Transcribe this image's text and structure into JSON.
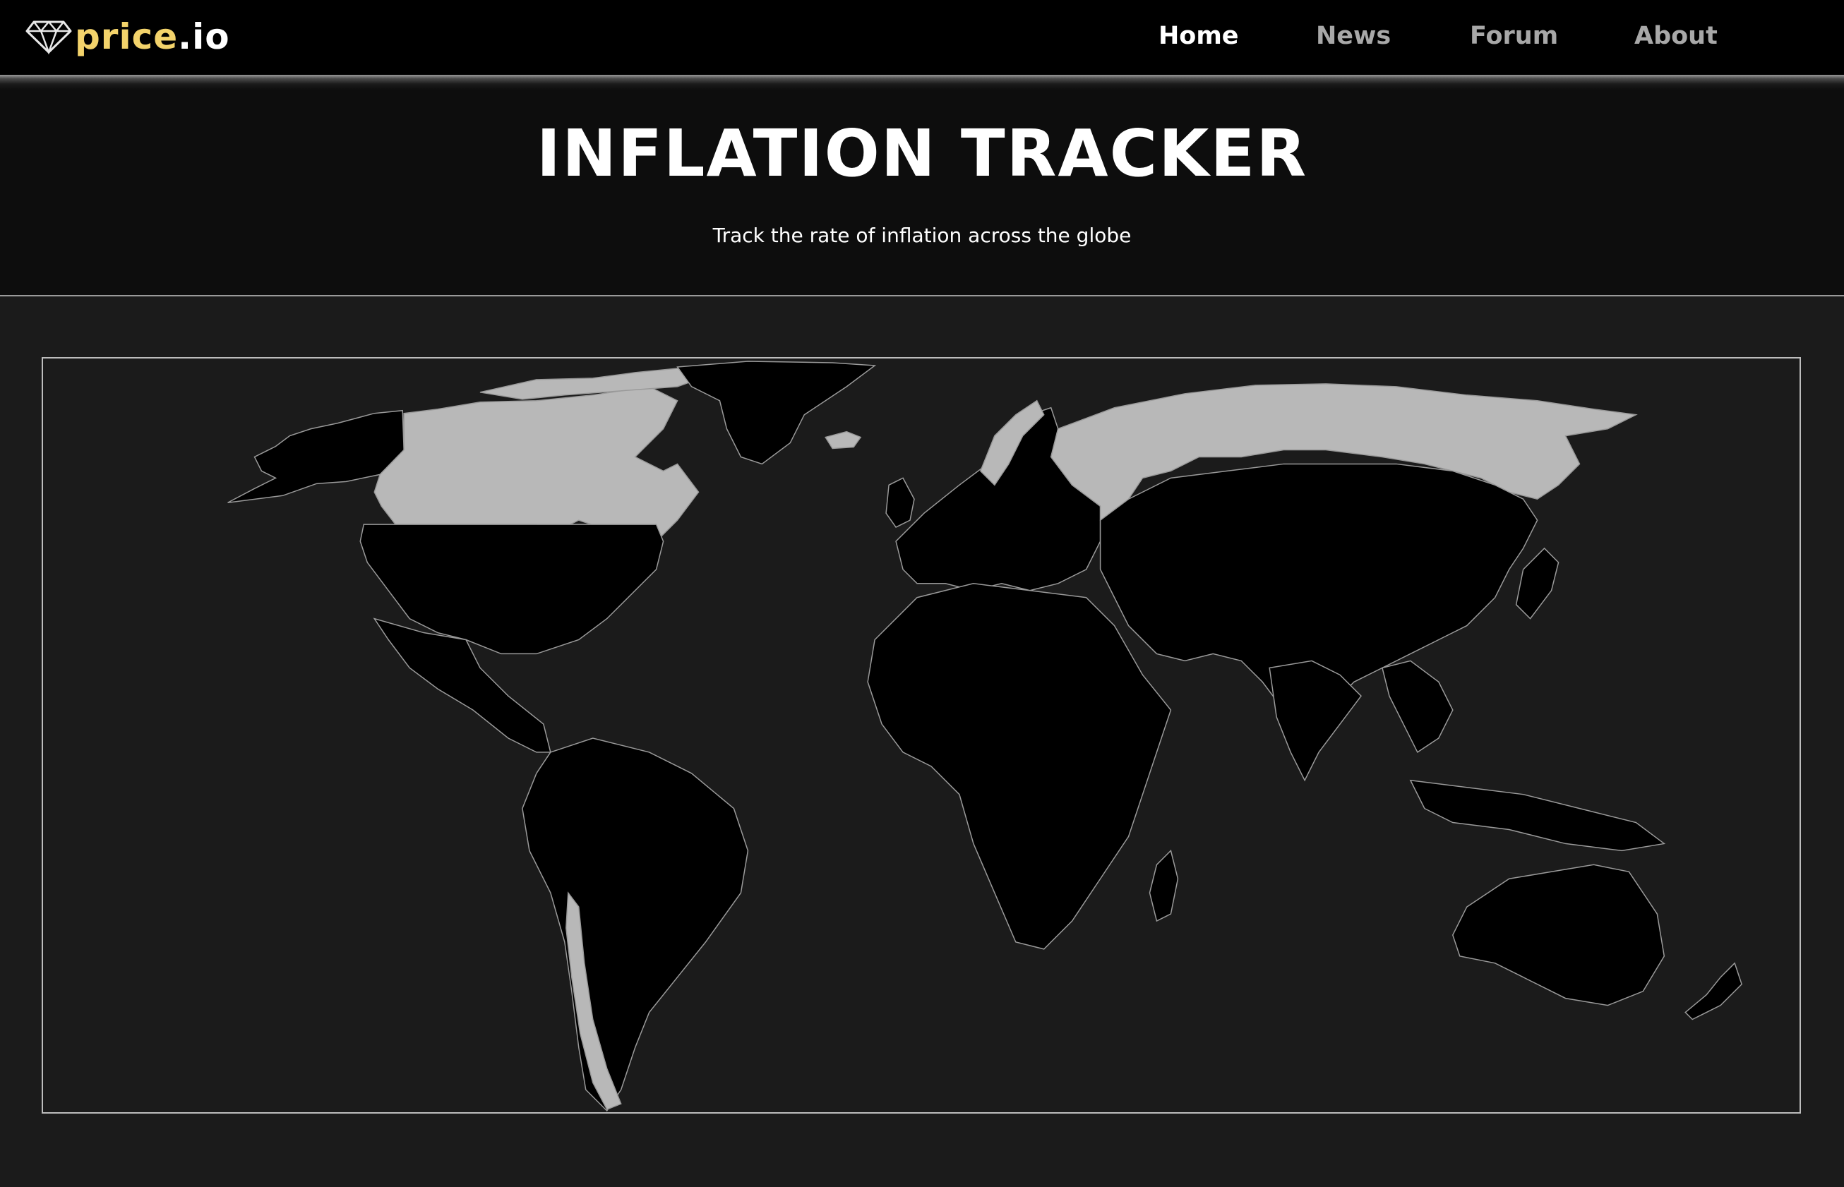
{
  "brand": {
    "name_main": "price",
    "name_tld": ".io",
    "logo_icon": "diamond-icon"
  },
  "nav": {
    "items": [
      {
        "label": "Home",
        "active": true
      },
      {
        "label": "News",
        "active": false
      },
      {
        "label": "Forum",
        "active": false
      },
      {
        "label": "About",
        "active": false
      }
    ]
  },
  "hero": {
    "title": "INFLATION TRACKER",
    "subtitle": "Track the rate of inflation across the globe"
  },
  "map": {
    "highlight_color": "#b8b8b8",
    "default_color": "#000000",
    "background_color": "#1b1b1b"
  }
}
